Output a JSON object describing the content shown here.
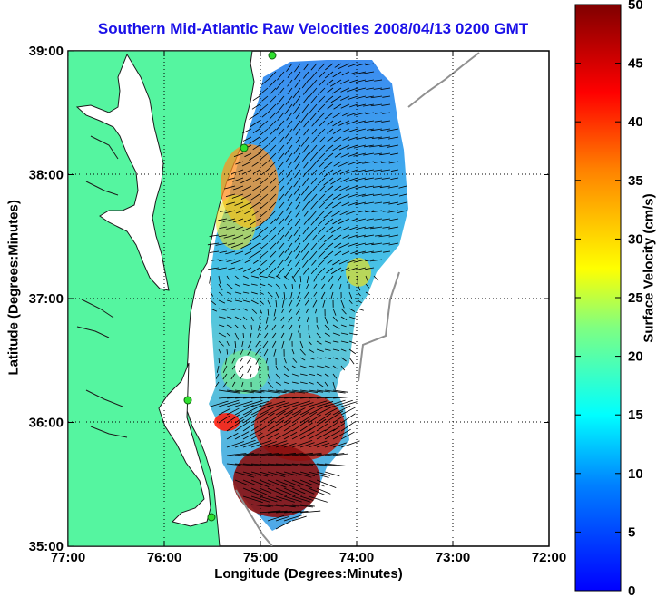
{
  "title": "Southern Mid-Atlantic Raw Velocities 2008/04/13 0200 GMT",
  "xlabel": "Longitude (Degrees:Minutes)",
  "ylabel": "Latitude (Degrees:Minutes)",
  "colorbar": {
    "label": "Surface Velocity (cm/s)",
    "ticks": [
      "0",
      "5",
      "10",
      "15",
      "20",
      "25",
      "30",
      "35",
      "40",
      "45",
      "50"
    ],
    "range": [
      0,
      50
    ]
  },
  "axes": {
    "x_ticks": [
      "77:00",
      "76:00",
      "75:00",
      "74:00",
      "73:00",
      "72:00"
    ],
    "y_ticks": [
      "39:00",
      "38:00",
      "37:00",
      "36:00",
      "35:00"
    ],
    "xlim": [
      -77,
      -72
    ],
    "ylim": [
      35,
      39
    ],
    "grid": true
  },
  "colors": {
    "land": "#55f5a0",
    "title": "#1a10e8"
  }
}
